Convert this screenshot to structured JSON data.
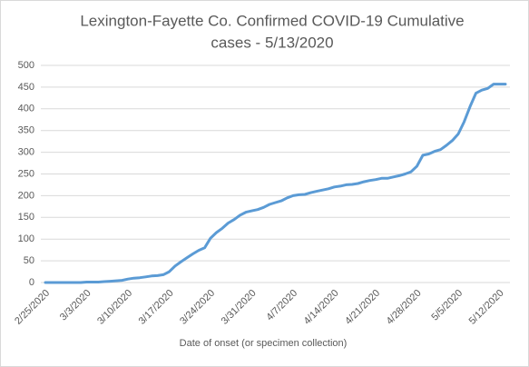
{
  "chart_data": {
    "type": "line",
    "title": [
      "Lexington-Fayette Co. Confirmed COVID-19 Cumulative",
      "cases - 5/13/2020"
    ],
    "x_label": "Date of onset (or specimen collection)",
    "categories": [
      "2/25/2020",
      null,
      null,
      null,
      null,
      null,
      null,
      "3/3/2020",
      null,
      null,
      null,
      null,
      null,
      null,
      "3/10/2020",
      null,
      null,
      null,
      null,
      null,
      null,
      "3/17/2020",
      null,
      null,
      null,
      null,
      null,
      null,
      "3/24/2020",
      null,
      null,
      null,
      null,
      null,
      null,
      "3/31/2020",
      null,
      null,
      null,
      null,
      null,
      null,
      "4/7/2020",
      null,
      null,
      null,
      null,
      null,
      null,
      "4/14/2020",
      null,
      null,
      null,
      null,
      null,
      null,
      "4/21/2020",
      null,
      null,
      null,
      null,
      null,
      null,
      "4/28/2020",
      null,
      null,
      null,
      null,
      null,
      null,
      "5/5/2020",
      null,
      null,
      null,
      null,
      null,
      null,
      "5/12/2020",
      null
    ],
    "values": [
      0,
      0,
      0,
      0,
      0,
      0,
      0,
      1,
      1,
      1,
      2,
      3,
      4,
      5,
      8,
      10,
      11,
      13,
      15,
      16,
      18,
      25,
      38,
      48,
      57,
      66,
      74,
      80,
      102,
      115,
      125,
      137,
      145,
      155,
      162,
      165,
      168,
      173,
      180,
      184,
      188,
      195,
      200,
      202,
      203,
      207,
      210,
      213,
      216,
      220,
      222,
      225,
      226,
      228,
      232,
      235,
      237,
      240,
      240,
      243,
      246,
      250,
      255,
      268,
      293,
      296,
      302,
      306,
      316,
      327,
      342,
      370,
      405,
      436,
      443,
      447,
      457,
      457,
      457
    ],
    "color": "#5b9bd5",
    "ylim": [
      0,
      500
    ],
    "yticks": [
      0,
      50,
      100,
      150,
      200,
      250,
      300,
      350,
      400,
      450,
      500
    ],
    "grid": true
  }
}
